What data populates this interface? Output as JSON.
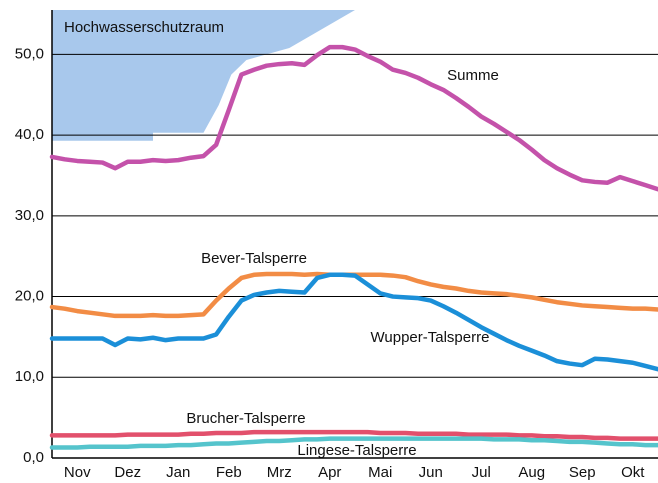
{
  "chart_data": {
    "type": "line",
    "xlim": [
      0,
      12
    ],
    "ylim": [
      0,
      55.5
    ],
    "xticks": [
      {
        "value": 0.5,
        "label": "Nov"
      },
      {
        "value": 1.5,
        "label": "Dez"
      },
      {
        "value": 2.5,
        "label": "Jan"
      },
      {
        "value": 3.5,
        "label": "Feb"
      },
      {
        "value": 4.5,
        "label": "Mrz"
      },
      {
        "value": 5.5,
        "label": "Apr"
      },
      {
        "value": 6.5,
        "label": "Mai"
      },
      {
        "value": 7.5,
        "label": "Jun"
      },
      {
        "value": 8.5,
        "label": "Jul"
      },
      {
        "value": 9.5,
        "label": "Aug"
      },
      {
        "value": 10.5,
        "label": "Sep"
      },
      {
        "value": 11.5,
        "label": "Okt"
      }
    ],
    "yticks": [
      {
        "value": 0,
        "label": "0,0"
      },
      {
        "value": 10,
        "label": "10,0"
      },
      {
        "value": 20,
        "label": "20,0"
      },
      {
        "value": 30,
        "label": "30,0"
      },
      {
        "value": 40,
        "label": "40,0"
      },
      {
        "value": 50,
        "label": "50,0"
      }
    ],
    "grid": true,
    "area": {
      "name": "Hochwasserschutzraum",
      "color": "#a8c8ec",
      "x": [
        0,
        2.0,
        2.0,
        3.0,
        3.3,
        3.55,
        3.85,
        4.7,
        6.0
      ],
      "values": [
        39.3,
        39.3,
        40.3,
        40.3,
        43.7,
        47.5,
        49.3,
        50.8,
        55.5
      ]
    },
    "x": [
      0,
      0.25,
      0.5,
      0.75,
      1,
      1.25,
      1.5,
      1.75,
      2,
      2.25,
      2.5,
      2.75,
      3,
      3.25,
      3.5,
      3.75,
      4,
      4.25,
      4.5,
      4.75,
      5,
      5.25,
      5.5,
      5.75,
      6,
      6.25,
      6.5,
      6.75,
      7,
      7.25,
      7.5,
      7.75,
      8,
      8.25,
      8.5,
      8.75,
      9,
      9.25,
      9.5,
      9.75,
      10,
      10.25,
      10.5,
      10.75,
      11,
      11.25,
      11.5,
      11.75,
      12
    ],
    "series": [
      {
        "name": "Summe",
        "color": "#c452aa",
        "values": [
          37.3,
          37.0,
          36.8,
          36.7,
          36.6,
          35.9,
          36.7,
          36.7,
          36.9,
          36.8,
          36.9,
          37.2,
          37.4,
          38.8,
          43.1,
          47.5,
          48.1,
          48.6,
          48.8,
          48.9,
          48.7,
          49.9,
          50.9,
          50.9,
          50.6,
          49.8,
          49.1,
          48.1,
          47.7,
          47.1,
          46.3,
          45.6,
          44.6,
          43.5,
          42.3,
          41.4,
          40.4,
          39.4,
          38.2,
          36.9,
          35.9,
          35.1,
          34.4,
          34.2,
          34.1,
          34.8,
          34.3,
          33.8,
          33.3
        ]
      },
      {
        "name": "Bever-Talsperre",
        "color": "#f28c45",
        "values": [
          18.7,
          18.5,
          18.2,
          18.0,
          17.8,
          17.6,
          17.6,
          17.6,
          17.7,
          17.6,
          17.6,
          17.7,
          17.8,
          19.5,
          21.0,
          22.3,
          22.7,
          22.8,
          22.8,
          22.8,
          22.7,
          22.8,
          22.7,
          22.7,
          22.7,
          22.7,
          22.7,
          22.6,
          22.4,
          21.9,
          21.5,
          21.2,
          21.0,
          20.7,
          20.5,
          20.4,
          20.3,
          20.1,
          19.9,
          19.6,
          19.3,
          19.1,
          18.9,
          18.8,
          18.7,
          18.6,
          18.5,
          18.5,
          18.4
        ]
      },
      {
        "name": "Wupper-Talsperre",
        "color": "#1b8fd8",
        "values": [
          14.8,
          14.8,
          14.8,
          14.8,
          14.8,
          14.0,
          14.8,
          14.7,
          14.9,
          14.6,
          14.8,
          14.8,
          14.8,
          15.3,
          17.5,
          19.5,
          20.2,
          20.5,
          20.7,
          20.6,
          20.5,
          22.3,
          22.7,
          22.7,
          22.6,
          21.5,
          20.4,
          20.0,
          19.9,
          19.8,
          19.5,
          18.8,
          18.0,
          17.1,
          16.2,
          15.4,
          14.6,
          13.9,
          13.3,
          12.7,
          12.0,
          11.7,
          11.5,
          12.3,
          12.2,
          12.0,
          11.8,
          11.4,
          11.0
        ]
      },
      {
        "name": "Brucher-Talsperre",
        "color": "#e2506c",
        "values": [
          2.8,
          2.8,
          2.8,
          2.8,
          2.8,
          2.8,
          2.9,
          2.9,
          2.9,
          2.9,
          2.9,
          3.0,
          3.0,
          3.1,
          3.1,
          3.1,
          3.2,
          3.2,
          3.2,
          3.2,
          3.2,
          3.2,
          3.2,
          3.2,
          3.2,
          3.2,
          3.1,
          3.1,
          3.1,
          3.0,
          3.0,
          3.0,
          3.0,
          2.9,
          2.9,
          2.9,
          2.9,
          2.8,
          2.8,
          2.7,
          2.7,
          2.6,
          2.6,
          2.5,
          2.5,
          2.4,
          2.4,
          2.4,
          2.4
        ]
      },
      {
        "name": "Lingese-Talsperre",
        "color": "#55c4cc",
        "values": [
          1.3,
          1.3,
          1.3,
          1.4,
          1.4,
          1.4,
          1.4,
          1.5,
          1.5,
          1.5,
          1.6,
          1.6,
          1.7,
          1.8,
          1.8,
          1.9,
          2.0,
          2.1,
          2.1,
          2.2,
          2.3,
          2.3,
          2.4,
          2.4,
          2.4,
          2.4,
          2.4,
          2.4,
          2.4,
          2.4,
          2.4,
          2.4,
          2.4,
          2.4,
          2.4,
          2.3,
          2.3,
          2.3,
          2.2,
          2.2,
          2.1,
          2.0,
          2.0,
          1.9,
          1.8,
          1.7,
          1.7,
          1.6,
          1.6
        ]
      }
    ]
  }
}
